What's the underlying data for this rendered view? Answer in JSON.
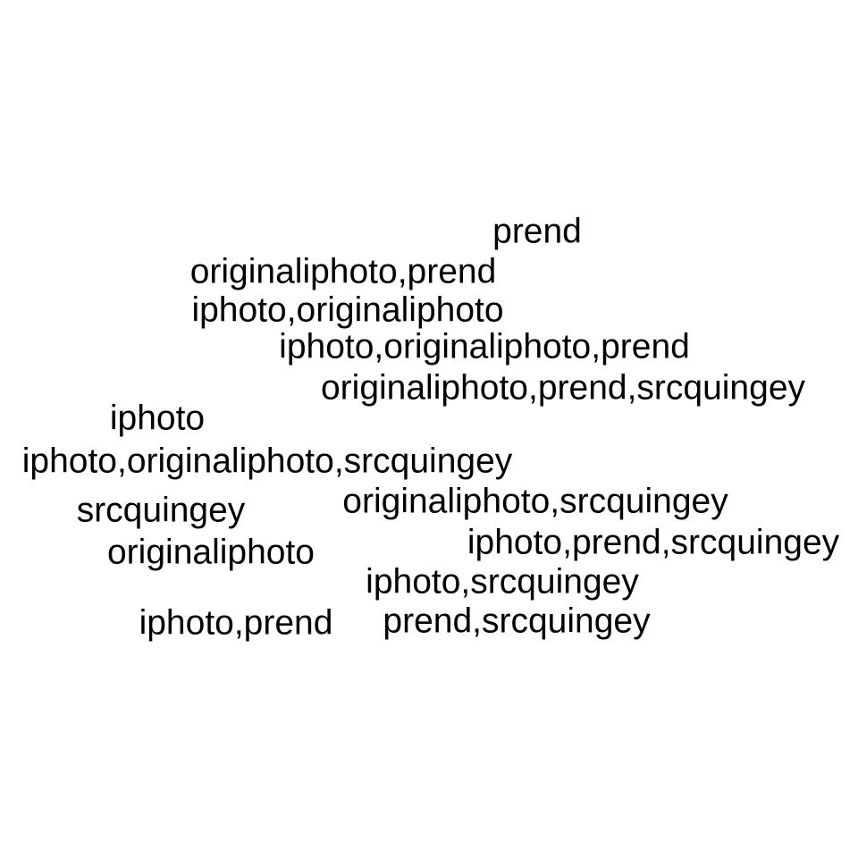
{
  "labels": [
    "prend",
    "originaliphoto,prend",
    "iphoto,originaliphoto",
    "iphoto,originaliphoto,prend",
    "originaliphoto,prend,srcquingey",
    "iphoto",
    "iphoto,originaliphoto,srcquingey",
    "srcquingey",
    "originaliphoto,srcquingey",
    "originaliphoto",
    "iphoto,prend,srcquingey",
    "iphoto,srcquingey",
    "iphoto,prend",
    "prend,srcquingey"
  ],
  "colors": {
    "background": "#ffffff",
    "text": "#000000"
  }
}
